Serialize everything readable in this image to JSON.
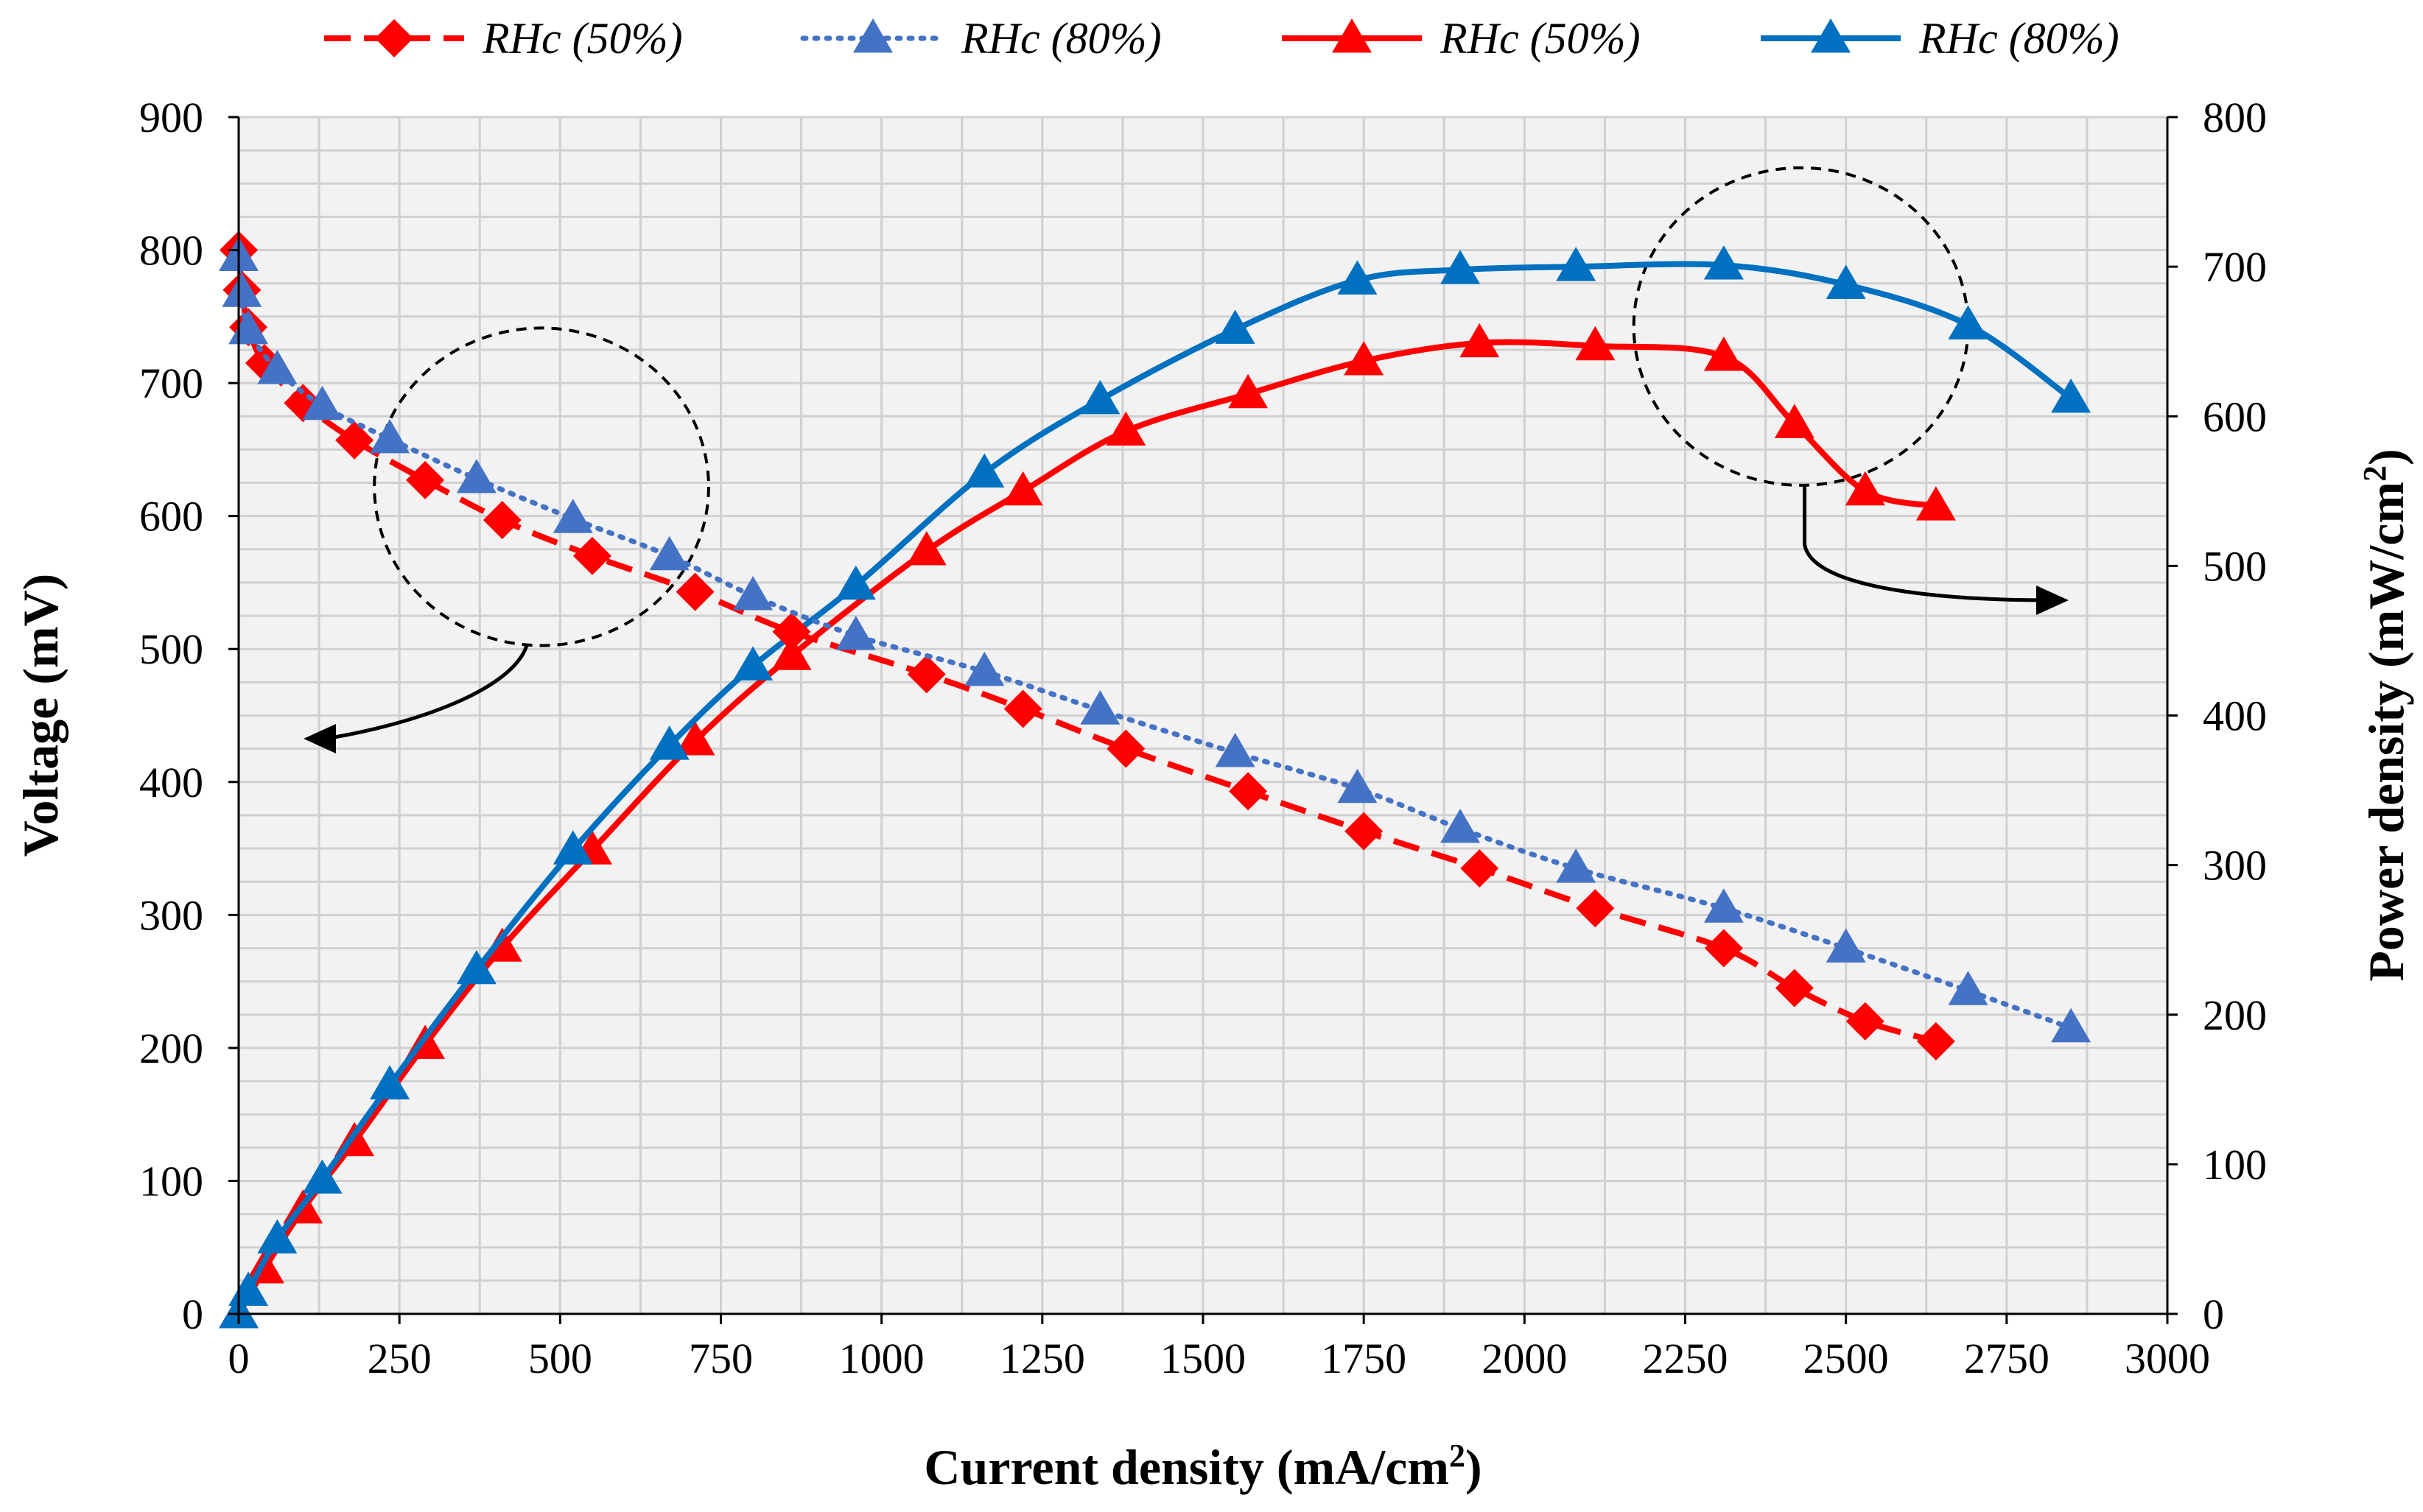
{
  "chart_data": {
    "type": "line",
    "xlabel": "Current density (mA/cm",
    "xlabel_sup": "2",
    "xlabel_end": ")",
    "ylabel_left": "Voltage (mV)",
    "ylabel_right": "Power density (mW/cm",
    "ylabel_right_sup": "2",
    "ylabel_right_end": ")",
    "xlim": [
      0,
      3000
    ],
    "ylim_left": [
      0,
      900
    ],
    "ylim_right": [
      0,
      800
    ],
    "x_ticks": [
      "0",
      "250",
      "500",
      "750",
      "1000",
      "1250",
      "1500",
      "1750",
      "2000",
      "2250",
      "2500",
      "2750",
      "3000"
    ],
    "y_left_ticks": [
      "0",
      "100",
      "200",
      "300",
      "400",
      "500",
      "600",
      "700",
      "800",
      "900"
    ],
    "y_right_ticks": [
      "0",
      "100",
      "200",
      "300",
      "400",
      "500",
      "600",
      "700",
      "800"
    ],
    "grid": true,
    "legend_position": "top",
    "series": [
      {
        "name": "RHc (50%)",
        "axis": "left",
        "style": "dashed",
        "marker": "diamond",
        "color": "#ff0000",
        "points": [
          [
            0,
            800
          ],
          [
            5,
            770
          ],
          [
            15,
            742
          ],
          [
            40,
            715
          ],
          [
            100,
            685
          ],
          [
            180,
            657
          ],
          [
            290,
            627
          ],
          [
            410,
            597
          ],
          [
            550,
            570
          ],
          [
            710,
            543
          ],
          [
            860,
            513
          ],
          [
            1070,
            481
          ],
          [
            1220,
            455
          ],
          [
            1380,
            425
          ],
          [
            1570,
            393
          ],
          [
            1750,
            363
          ],
          [
            1930,
            335
          ],
          [
            2110,
            305
          ],
          [
            2310,
            275
          ],
          [
            2420,
            245
          ],
          [
            2530,
            220
          ],
          [
            2640,
            205
          ]
        ]
      },
      {
        "name": "RHc (80%)",
        "axis": "left",
        "style": "dotted",
        "marker": "triangle",
        "color": "#4472c4",
        "points": [
          [
            0,
            795
          ],
          [
            5,
            768
          ],
          [
            15,
            740
          ],
          [
            60,
            710
          ],
          [
            130,
            683
          ],
          [
            235,
            658
          ],
          [
            370,
            628
          ],
          [
            520,
            598
          ],
          [
            670,
            570
          ],
          [
            800,
            540
          ],
          [
            960,
            510
          ],
          [
            1160,
            483
          ],
          [
            1340,
            454
          ],
          [
            1550,
            422
          ],
          [
            1740,
            395
          ],
          [
            1900,
            365
          ],
          [
            2080,
            335
          ],
          [
            2310,
            305
          ],
          [
            2500,
            275
          ],
          [
            2690,
            243
          ],
          [
            2850,
            215
          ]
        ]
      },
      {
        "name": "RHc (50%)",
        "axis": "right",
        "style": "solid",
        "marker": "triangle",
        "color": "#ff0000",
        "points": [
          [
            0,
            0
          ],
          [
            40,
            30
          ],
          [
            100,
            70
          ],
          [
            180,
            115
          ],
          [
            290,
            180
          ],
          [
            410,
            245
          ],
          [
            550,
            310
          ],
          [
            710,
            383
          ],
          [
            860,
            440
          ],
          [
            1070,
            510
          ],
          [
            1220,
            550
          ],
          [
            1380,
            590
          ],
          [
            1570,
            615
          ],
          [
            1750,
            637
          ],
          [
            1930,
            649
          ],
          [
            2110,
            647
          ],
          [
            2310,
            640
          ],
          [
            2420,
            595
          ],
          [
            2530,
            550
          ],
          [
            2640,
            540
          ]
        ]
      },
      {
        "name": "RHc (80%)",
        "axis": "right",
        "style": "solid",
        "marker": "triangle",
        "color": "#0070c0",
        "points": [
          [
            0,
            0
          ],
          [
            15,
            15
          ],
          [
            60,
            50
          ],
          [
            130,
            90
          ],
          [
            235,
            153
          ],
          [
            370,
            230
          ],
          [
            520,
            310
          ],
          [
            670,
            380
          ],
          [
            800,
            433
          ],
          [
            960,
            487
          ],
          [
            1160,
            562
          ],
          [
            1340,
            611
          ],
          [
            1550,
            658
          ],
          [
            1740,
            691
          ],
          [
            1900,
            698
          ],
          [
            2080,
            700
          ],
          [
            2310,
            701
          ],
          [
            2500,
            688
          ],
          [
            2690,
            661
          ],
          [
            2850,
            612
          ]
        ]
      }
    ],
    "annotations": [
      {
        "type": "dashed-circle",
        "center": [
          471,
          622
        ],
        "radius_x": 260,
        "radius_y": 103,
        "axis": "left",
        "arrow_to": "left axis"
      },
      {
        "type": "dashed-circle",
        "center": [
          2430,
          660
        ],
        "radius_x": 260,
        "radius_y": 103,
        "axis": "right",
        "arrow_to": "right axis"
      }
    ]
  }
}
